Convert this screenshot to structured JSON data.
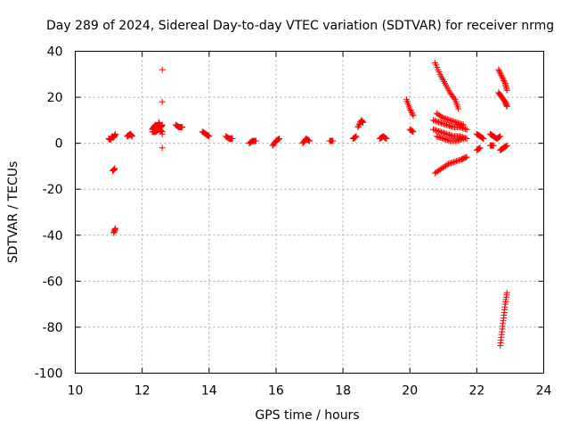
{
  "chart_data": {
    "type": "scatter",
    "title": "Day 289 of 2024, Sidereal Day-to-day VTEC variation (SDTVAR) for receiver nrmg",
    "xlabel": "GPS time / hours",
    "ylabel": "SDTVAR / TECUs",
    "xlim": [
      10,
      24
    ],
    "ylim": [
      -100,
      40
    ],
    "xticks": [
      10,
      12,
      14,
      16,
      18,
      20,
      22,
      24
    ],
    "yticks": [
      -100,
      -80,
      -60,
      -40,
      -20,
      0,
      20,
      40
    ],
    "grid": true,
    "marker": "plus",
    "color": "#ff0000",
    "segments": [
      {
        "x": [
          11.0,
          11.05,
          11.1,
          11.15,
          11.2
        ],
        "y": [
          2,
          1.5,
          3,
          2.5,
          4
        ]
      },
      {
        "x": [
          11.12,
          11.18
        ],
        "y": [
          -12,
          -11
        ]
      },
      {
        "x": [
          11.15,
          11.2
        ],
        "y": [
          -39,
          -37
        ]
      },
      {
        "x": [
          11.55,
          11.6,
          11.65,
          11.7
        ],
        "y": [
          3,
          3.5,
          4,
          3
        ]
      },
      {
        "x": [
          12.3,
          12.35,
          12.4,
          12.45,
          12.5,
          12.55,
          12.6
        ],
        "y": [
          6,
          7,
          8,
          6,
          9,
          7,
          8
        ]
      },
      {
        "x": [
          12.3,
          12.4,
          12.5,
          12.6
        ],
        "y": [
          5,
          5,
          6,
          5
        ]
      },
      {
        "x": [
          12.6
        ],
        "y": [
          32
        ]
      },
      {
        "x": [
          12.6
        ],
        "y": [
          18
        ]
      },
      {
        "x": [
          12.6
        ],
        "y": [
          4
        ]
      },
      {
        "x": [
          12.6
        ],
        "y": [
          -2
        ]
      },
      {
        "x": [
          13.0,
          13.1,
          13.2
        ],
        "y": [
          8,
          7,
          7
        ]
      },
      {
        "x": [
          13.8,
          13.9,
          14.0
        ],
        "y": [
          5,
          4,
          3
        ]
      },
      {
        "x": [
          14.5,
          14.6,
          14.7
        ],
        "y": [
          3,
          2,
          2
        ]
      },
      {
        "x": [
          15.2,
          15.3,
          15.4
        ],
        "y": [
          0,
          1,
          1
        ]
      },
      {
        "x": [
          15.9,
          16.0,
          16.1
        ],
        "y": [
          -1,
          1,
          2
        ]
      },
      {
        "x": [
          16.8,
          16.9,
          17.0
        ],
        "y": [
          0,
          2,
          1
        ]
      },
      {
        "x": [
          17.6,
          17.7
        ],
        "y": [
          1,
          1
        ]
      },
      {
        "x": [
          18.3,
          18.4
        ],
        "y": [
          2,
          3
        ]
      },
      {
        "x": [
          18.45,
          18.55,
          18.6
        ],
        "y": [
          7,
          10,
          9
        ]
      },
      {
        "x": [
          19.1,
          19.2,
          19.3
        ],
        "y": [
          2,
          3,
          2
        ]
      },
      {
        "x": [
          19.9,
          20.0,
          20.1
        ],
        "y": [
          19,
          15,
          12
        ]
      },
      {
        "x": [
          20.0,
          20.1
        ],
        "y": [
          6,
          5
        ]
      },
      {
        "x": [
          20.75,
          20.9,
          21.05,
          21.2,
          21.35,
          21.45
        ],
        "y": [
          35,
          30,
          26,
          22,
          19,
          15
        ]
      },
      {
        "x": [
          20.7,
          20.9,
          21.1,
          21.3,
          21.5,
          21.7
        ],
        "y": [
          10,
          9,
          8,
          7,
          7,
          6
        ]
      },
      {
        "x": [
          20.7,
          20.9,
          21.1,
          21.3,
          21.5,
          21.7
        ],
        "y": [
          6,
          5,
          4,
          3,
          3,
          2
        ]
      },
      {
        "x": [
          20.8,
          21.0,
          21.2,
          21.4,
          21.6
        ],
        "y": [
          13,
          11,
          10,
          9,
          8
        ]
      },
      {
        "x": [
          20.8,
          21.0,
          21.2,
          21.4,
          21.6
        ],
        "y": [
          3,
          2,
          1,
          1,
          2
        ]
      },
      {
        "x": [
          20.75,
          20.95,
          21.15,
          21.35,
          21.55,
          21.7
        ],
        "y": [
          -13,
          -11,
          -9,
          -8,
          -7,
          -6
        ]
      },
      {
        "x": [
          22.0,
          22.1,
          22.2
        ],
        "y": [
          4,
          3,
          2
        ]
      },
      {
        "x": [
          22.0,
          22.1
        ],
        "y": [
          -3,
          -2
        ]
      },
      {
        "x": [
          22.4,
          22.5,
          22.6,
          22.7
        ],
        "y": [
          4,
          3,
          2,
          3
        ]
      },
      {
        "x": [
          22.4,
          22.5
        ],
        "y": [
          -1,
          -1
        ]
      },
      {
        "x": [
          22.65,
          22.75,
          22.85,
          22.9
        ],
        "y": [
          32,
          29,
          26,
          23
        ]
      },
      {
        "x": [
          22.65,
          22.75,
          22.85,
          22.9
        ],
        "y": [
          22,
          20,
          18,
          16
        ]
      },
      {
        "x": [
          22.7,
          22.8,
          22.9
        ],
        "y": [
          -3,
          -2,
          -1
        ]
      },
      {
        "x": [
          22.7,
          22.75,
          22.8,
          22.85,
          22.9
        ],
        "y": [
          -88,
          -82,
          -76,
          -70,
          -65
        ]
      }
    ]
  }
}
